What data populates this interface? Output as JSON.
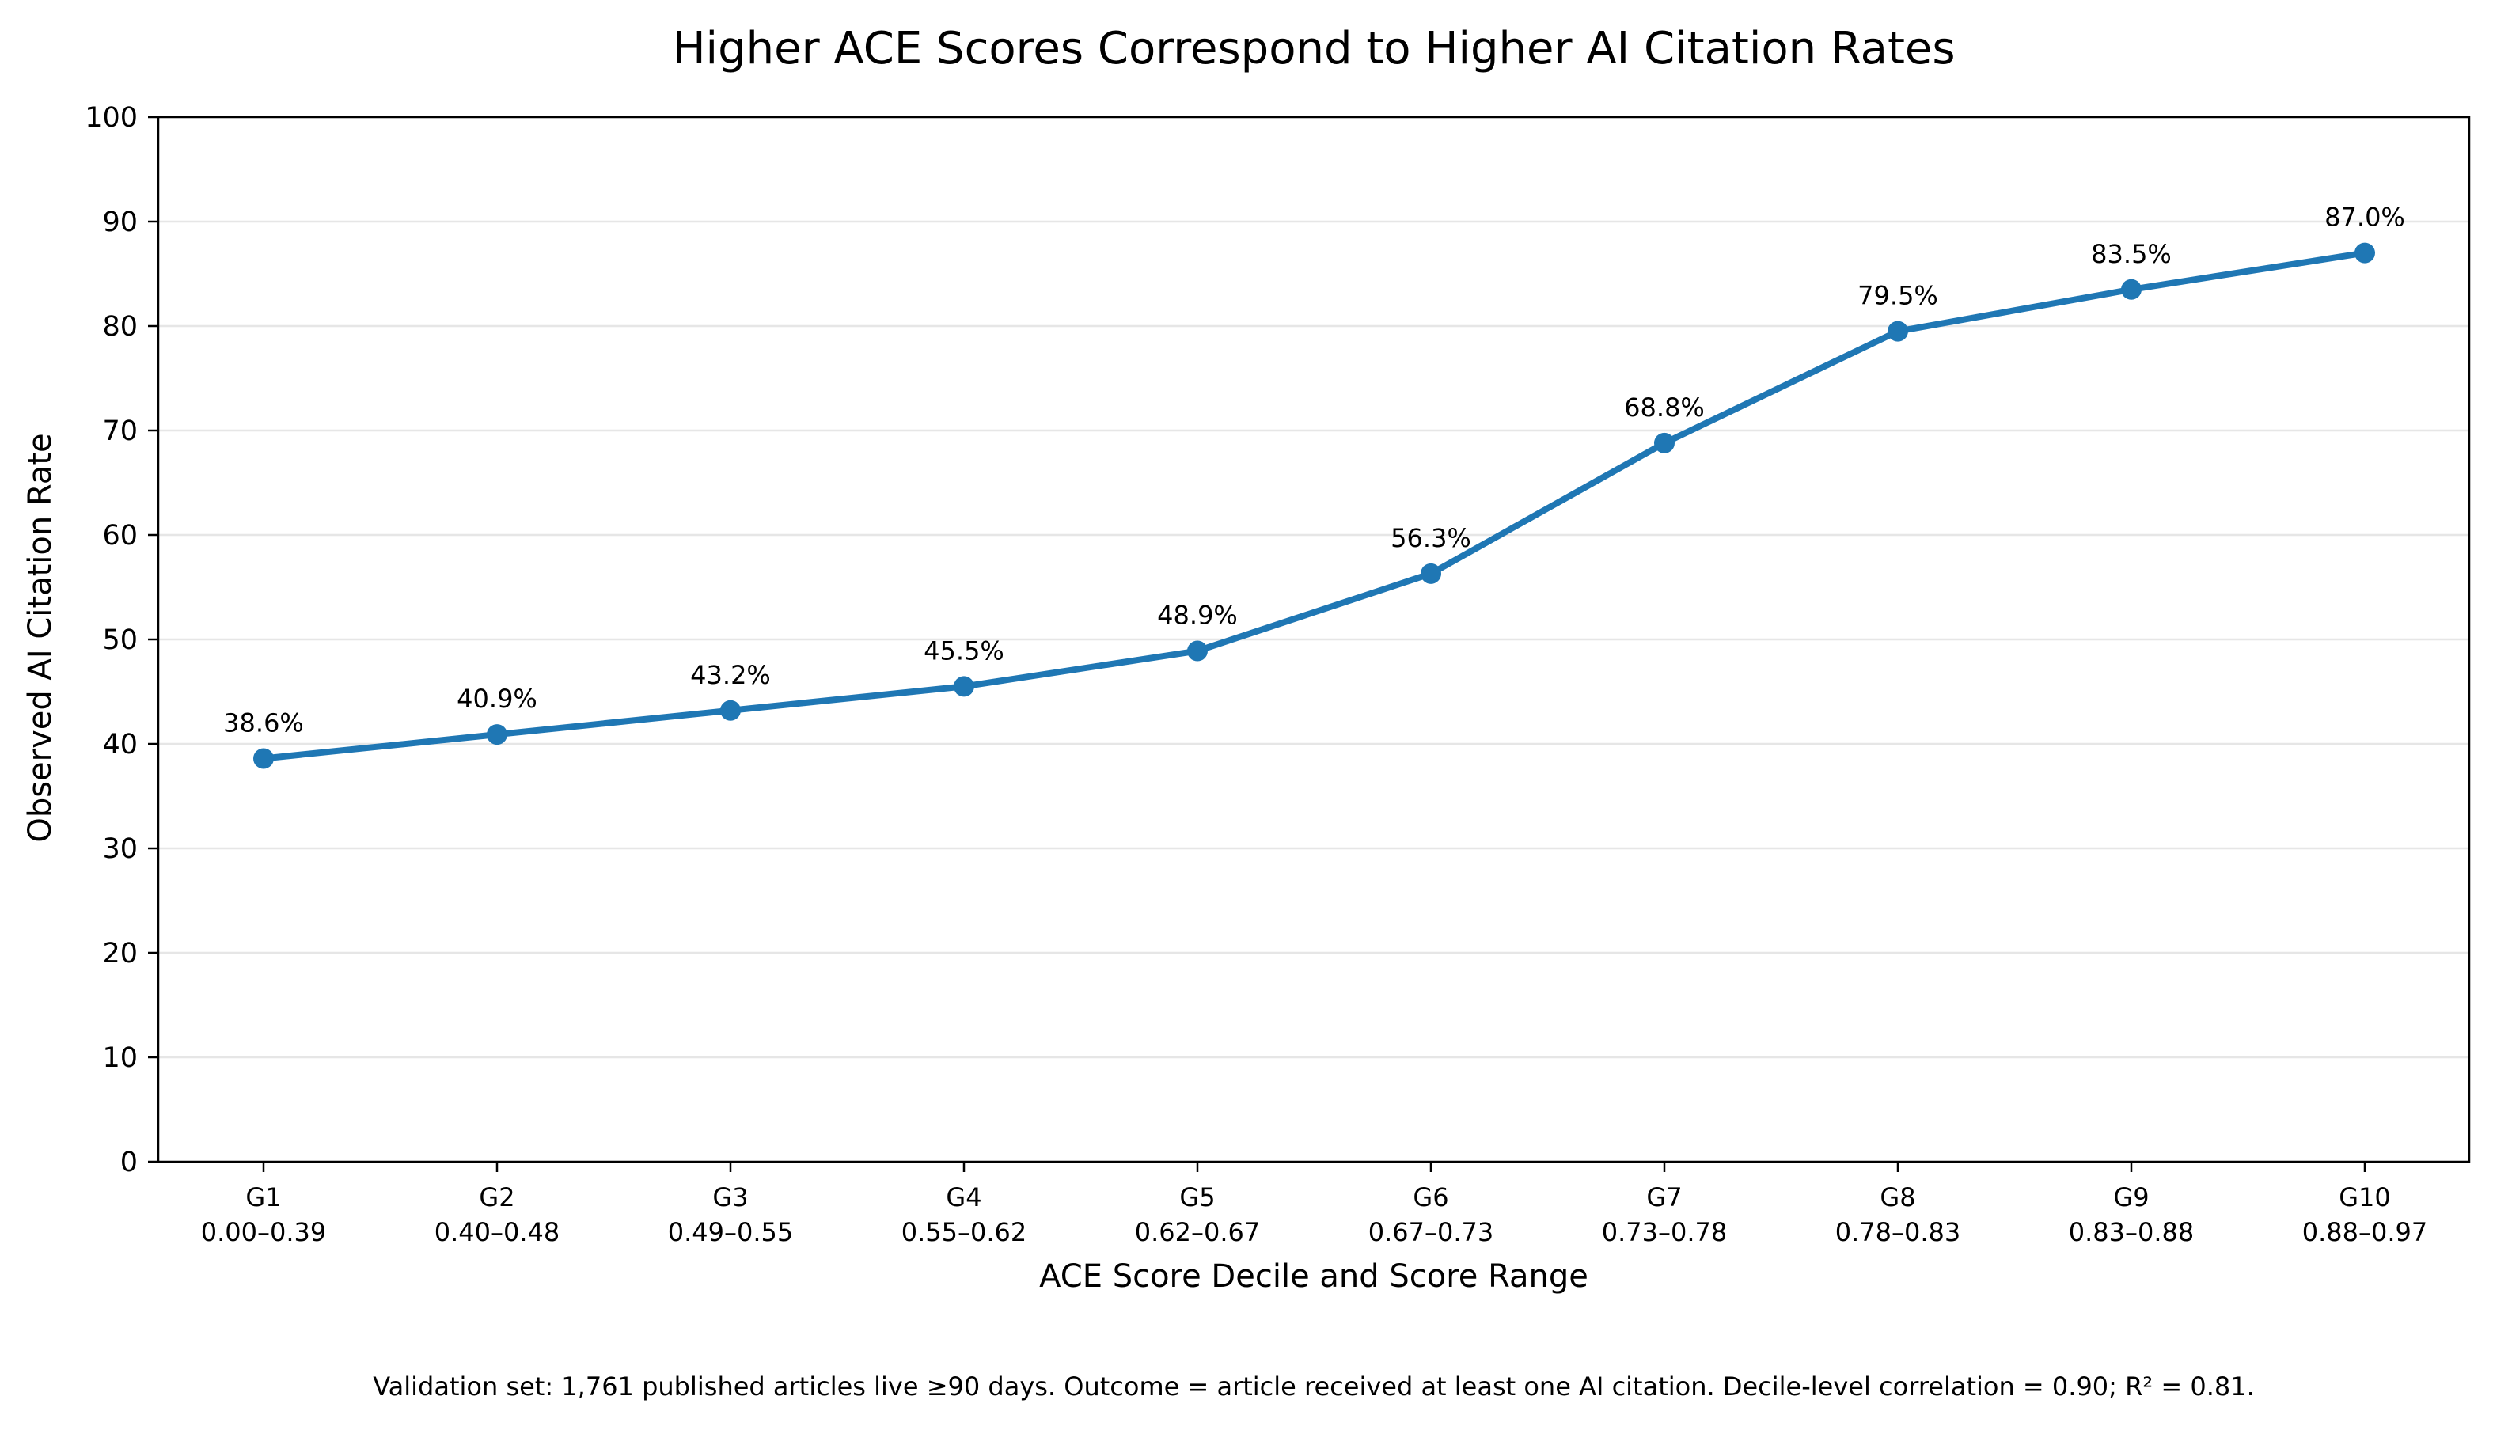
{
  "chart_data": {
    "type": "line",
    "title": "Higher ACE Scores Correspond to Higher AI Citation Rates",
    "xlabel": "ACE Score Decile and Score Range",
    "ylabel": "Observed AI Citation Rate",
    "ylim": [
      0,
      100
    ],
    "yticks": [
      0,
      10,
      20,
      30,
      40,
      50,
      60,
      70,
      80,
      90,
      100
    ],
    "grid": "y-major",
    "categories": [
      "G1",
      "G2",
      "G3",
      "G4",
      "G5",
      "G6",
      "G7",
      "G8",
      "G9",
      "G10"
    ],
    "category_ranges": [
      "0.00–0.39",
      "0.40–0.48",
      "0.49–0.55",
      "0.55–0.62",
      "0.62–0.67",
      "0.67–0.73",
      "0.73–0.78",
      "0.78–0.83",
      "0.83–0.88",
      "0.88–0.97"
    ],
    "series": [
      {
        "values": [
          38.6,
          40.9,
          43.2,
          45.5,
          48.9,
          56.3,
          68.8,
          79.5,
          83.5,
          87.0
        ],
        "data_labels": [
          "38.6%",
          "40.9%",
          "43.2%",
          "45.5%",
          "48.9%",
          "56.3%",
          "68.8%",
          "79.5%",
          "83.5%",
          "87.0%"
        ],
        "color": "#1f77b4"
      }
    ],
    "footnote": "Validation set: 1,761 published articles live ≥90 days. Outcome = article received at least one AI citation. Decile-level correlation = 0.90; R² = 0.81."
  }
}
